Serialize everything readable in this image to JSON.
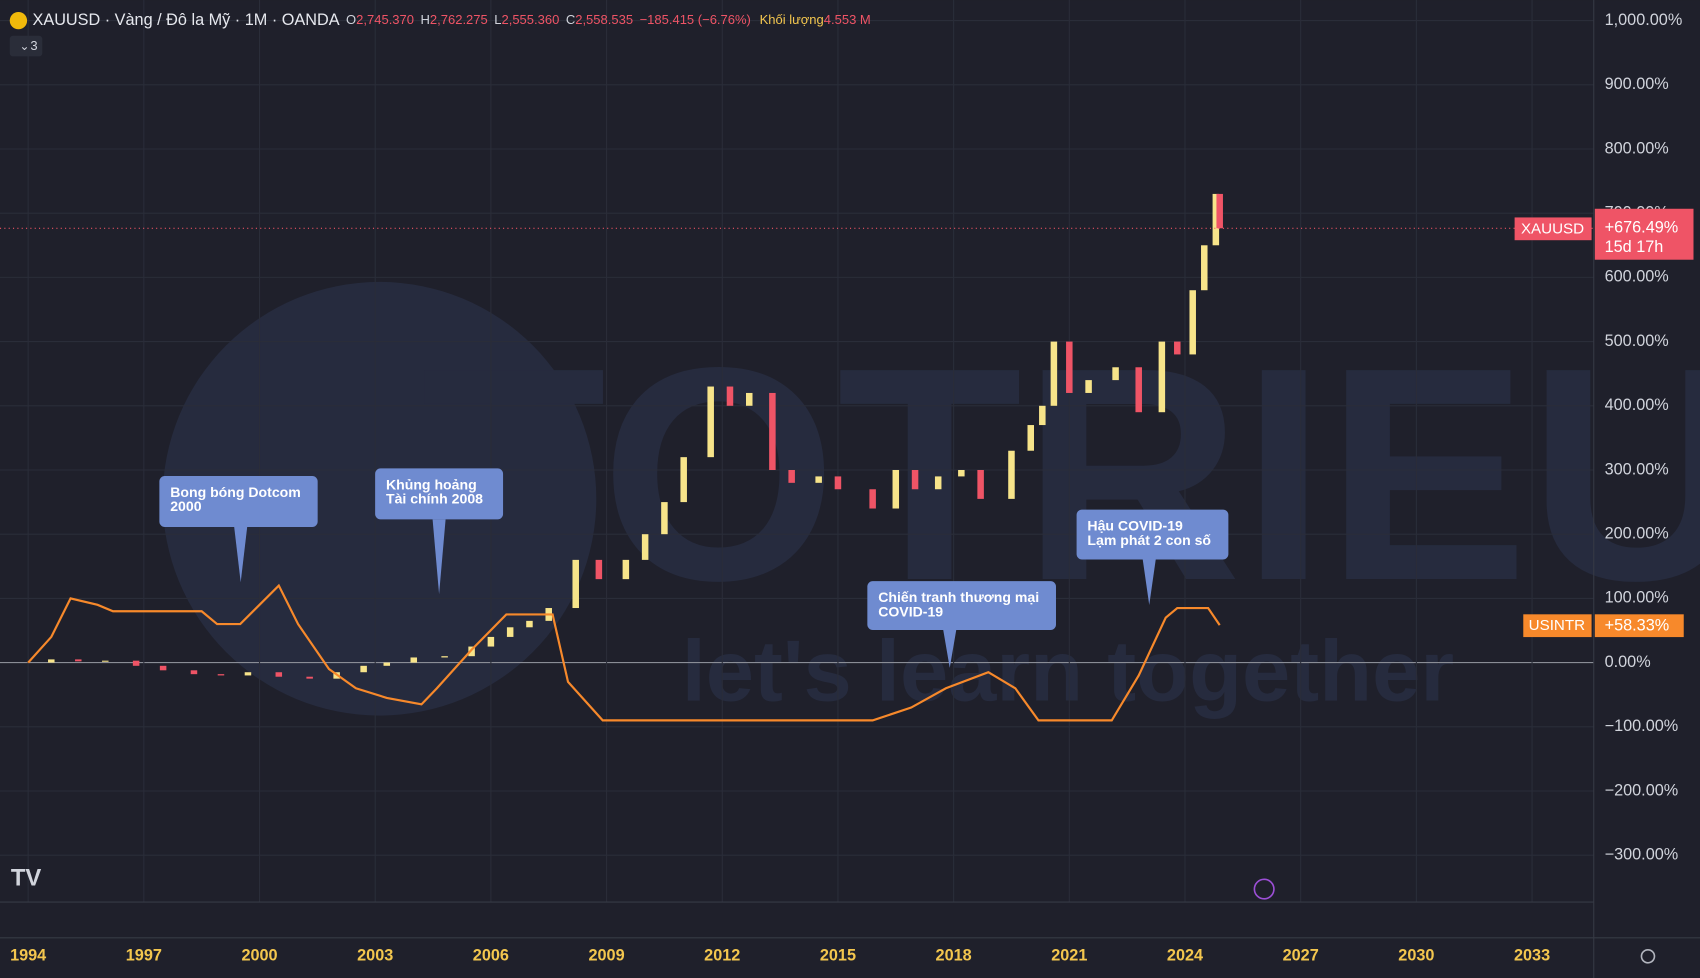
{
  "chart_data": {
    "type": "candlestick",
    "header": {
      "symbol": "XAUUSD · Vàng / Đô la Mỹ · 1M · OANDA",
      "open_label": "O",
      "open": "2,745.370",
      "high_label": "H",
      "high": "2,762.275",
      "low_label": "L",
      "low": "2,555.360",
      "close_label": "C",
      "close": "2,558.535",
      "change": "−185.415 (−6.76%)",
      "volume_label": "Khối lượng",
      "volume": "4.553 M",
      "indicators": "3"
    },
    "watermark": [
      "TOTRIEU",
      "let's learn together"
    ],
    "xlim": [
      1993.27,
      2034.6
    ],
    "xticks": [
      1994,
      1997,
      2000,
      2003,
      2006,
      2009,
      2012,
      2015,
      2018,
      2021,
      2024,
      2027,
      2030,
      2033
    ],
    "ylim": [
      -373,
      1032
    ],
    "yticks": [
      {
        "value": -300,
        "label": "−300.00%"
      },
      {
        "value": -200,
        "label": "−200.00%"
      },
      {
        "value": -100,
        "label": "−100.00%"
      },
      {
        "value": 0,
        "label": "0.00%"
      },
      {
        "value": 100,
        "label": "100.00%"
      },
      {
        "value": 200,
        "label": "200.00%"
      },
      {
        "value": 300,
        "label": "300.00%"
      },
      {
        "value": 400,
        "label": "400.00%"
      },
      {
        "value": 500,
        "label": "500.00%"
      },
      {
        "value": 600,
        "label": "600.00%"
      },
      {
        "value": 700,
        "label": "700.00%"
      },
      {
        "value": 800,
        "label": "800.00%"
      },
      {
        "value": 900,
        "label": "900.00%"
      },
      {
        "value": 1000,
        "label": "1,000.00%"
      }
    ],
    "grid": true,
    "series": [
      {
        "name": "XAUUSD",
        "type": "candlestick",
        "up_color": "#f7e48a",
        "down_color": "#ef5466",
        "x": [
          1994.0,
          1994.6,
          1995.3,
          1996.0,
          1996.8,
          1997.5,
          1998.3,
          1999.0,
          1999.7,
          2000.5,
          2001.3,
          2002.0,
          2002.7,
          2003.3,
          2004.0,
          2004.8,
          2005.5,
          2006.0,
          2006.5,
          2007.0,
          2007.5,
          2008.2,
          2008.8,
          2009.5,
          2010.0,
          2010.5,
          2011.0,
          2011.7,
          2012.2,
          2012.7,
          2013.3,
          2013.8,
          2014.5,
          2015.0,
          2015.9,
          2016.5,
          2017.0,
          2017.6,
          2018.2,
          2018.7,
          2019.5,
          2020.0,
          2020.3,
          2020.6,
          2021.0,
          2021.5,
          2022.2,
          2022.8,
          2023.4,
          2023.8,
          2024.2,
          2024.5,
          2024.8,
          2024.9
        ],
        "values": [
          0,
          5,
          2,
          3,
          -5,
          -12,
          -18,
          -20,
          -15,
          -22,
          -25,
          -15,
          -5,
          0,
          8,
          10,
          25,
          40,
          55,
          65,
          85,
          160,
          130,
          160,
          200,
          250,
          320,
          430,
          400,
          420,
          300,
          280,
          290,
          270,
          240,
          300,
          270,
          290,
          300,
          255,
          330,
          370,
          400,
          500,
          420,
          440,
          460,
          390,
          500,
          480,
          580,
          650,
          730,
          676.49
        ],
        "tag_label": "+676.49%",
        "tag_time": "15d 17h"
      },
      {
        "name": "USINTR",
        "type": "line",
        "color": "#f7892b",
        "x": [
          1994.0,
          1994.6,
          1995.1,
          1995.8,
          1996.2,
          1998.5,
          1998.9,
          1999.5,
          2000.0,
          2000.5,
          2001.0,
          2001.8,
          2002.5,
          2003.3,
          2004.2,
          2004.6,
          2005.5,
          2006.4,
          2007.6,
          2008.0,
          2008.9,
          2015.9,
          2016.9,
          2017.8,
          2018.9,
          2019.6,
          2020.2,
          2022.1,
          2022.8,
          2023.5,
          2023.8,
          2024.6,
          2024.9
        ],
        "values": [
          0,
          40,
          100,
          90,
          80,
          80,
          60,
          60,
          90,
          120,
          60,
          -10,
          -40,
          -55,
          -65,
          -40,
          20,
          75,
          75,
          -30,
          -90,
          -90,
          -70,
          -40,
          -15,
          -40,
          -90,
          -90,
          -20,
          70,
          85,
          85,
          58.33
        ],
        "tag_label": "+58.33%"
      }
    ],
    "annotations": [
      {
        "lines": [
          "Bong bóng Dotcom",
          "2000"
        ]
      },
      {
        "lines": [
          "Khủng hoảng",
          "Tài chính 2008"
        ]
      },
      {
        "lines": [
          "Chiến tranh thương mại",
          "COVID-19"
        ]
      },
      {
        "lines": [
          "Hậu COVID-19",
          "Lạm phát 2 con số"
        ]
      }
    ]
  }
}
